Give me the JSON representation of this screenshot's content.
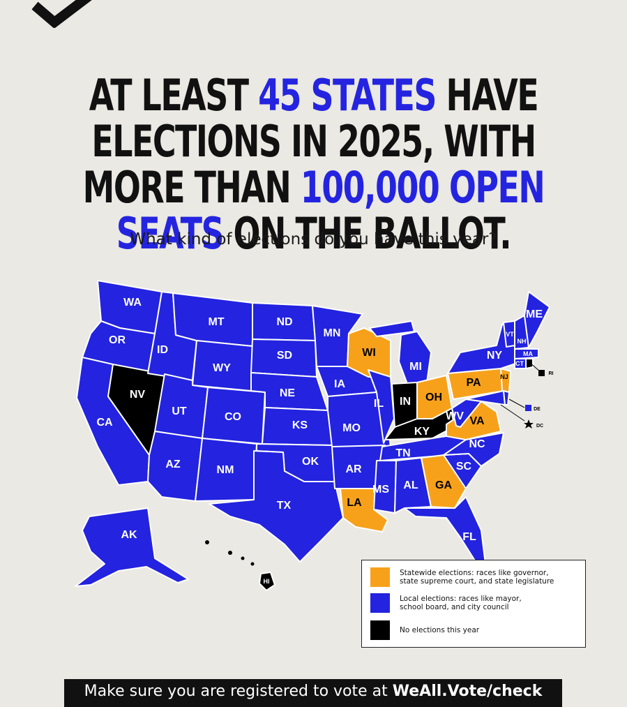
{
  "headline": {
    "part1": "AT LEAST ",
    "highlight1": "45 STATES",
    "part2": " HAVE ELECTIONS IN 2025, WITH MORE THAN ",
    "highlight2": "100,000 OPEN SEATS",
    "part3": " ON THE BALLOT."
  },
  "subtitle": "What kind of elections do you have this year?",
  "colors": {
    "statewide": "#f7a11b",
    "local": "#2323e0",
    "none": "#000000",
    "highlight": "#2424e0",
    "background": "#ebe9e3"
  },
  "states": {
    "statewide": [
      "WI",
      "OH",
      "PA",
      "NJ",
      "VA",
      "GA",
      "LA"
    ],
    "none": [
      "NV",
      "IN",
      "KY",
      "RI",
      "HI"
    ],
    "local": [
      "WA",
      "OR",
      "CA",
      "ID",
      "MT",
      "WY",
      "UT",
      "CO",
      "AZ",
      "NM",
      "ND",
      "SD",
      "NE",
      "KS",
      "OK",
      "TX",
      "MN",
      "IA",
      "MO",
      "AR",
      "IL",
      "MI",
      "TN",
      "MS",
      "AL",
      "FL",
      "SC",
      "NC",
      "WV",
      "NY",
      "ME",
      "VT",
      "NH",
      "MA",
      "CT",
      "DE",
      "AK",
      "DC",
      "MD"
    ]
  },
  "labels": {
    "WA": "WA",
    "OR": "OR",
    "CA": "CA",
    "NV": "NV",
    "ID": "ID",
    "MT": "MT",
    "WY": "WY",
    "UT": "UT",
    "CO": "CO",
    "AZ": "AZ",
    "NM": "NM",
    "ND": "ND",
    "SD": "SD",
    "NE": "NE",
    "KS": "KS",
    "OK": "OK",
    "TX": "TX",
    "MN": "MN",
    "IA": "IA",
    "MO": "MO",
    "AR": "AR",
    "LA": "LA",
    "WI": "WI",
    "IL": "IL",
    "MI": "MI",
    "IN": "IN",
    "OH": "OH",
    "KY": "KY",
    "TN": "TN",
    "MS": "MS",
    "AL": "AL",
    "GA": "GA",
    "FL": "FL",
    "SC": "SC",
    "NC": "NC",
    "VA": "VA",
    "WV": "WV",
    "PA": "PA",
    "NY": "NY",
    "ME": "ME",
    "VT": "VT",
    "NH": "NH",
    "MA": "MA",
    "CT": "CT",
    "NJ": "NJ",
    "RI": "RI",
    "DE": "DE",
    "DC": "DC",
    "AK": "AK",
    "HI": "HI"
  },
  "legend": {
    "statewide": "Statewide elections: races like governor,\nstate supreme court, and state legislature",
    "local": "Local elections: races like mayor,\nschool board, and city council",
    "none": "No elections this year"
  },
  "footer": {
    "text": "Make sure you are registered to vote at ",
    "link": "WeAll.Vote/check"
  }
}
